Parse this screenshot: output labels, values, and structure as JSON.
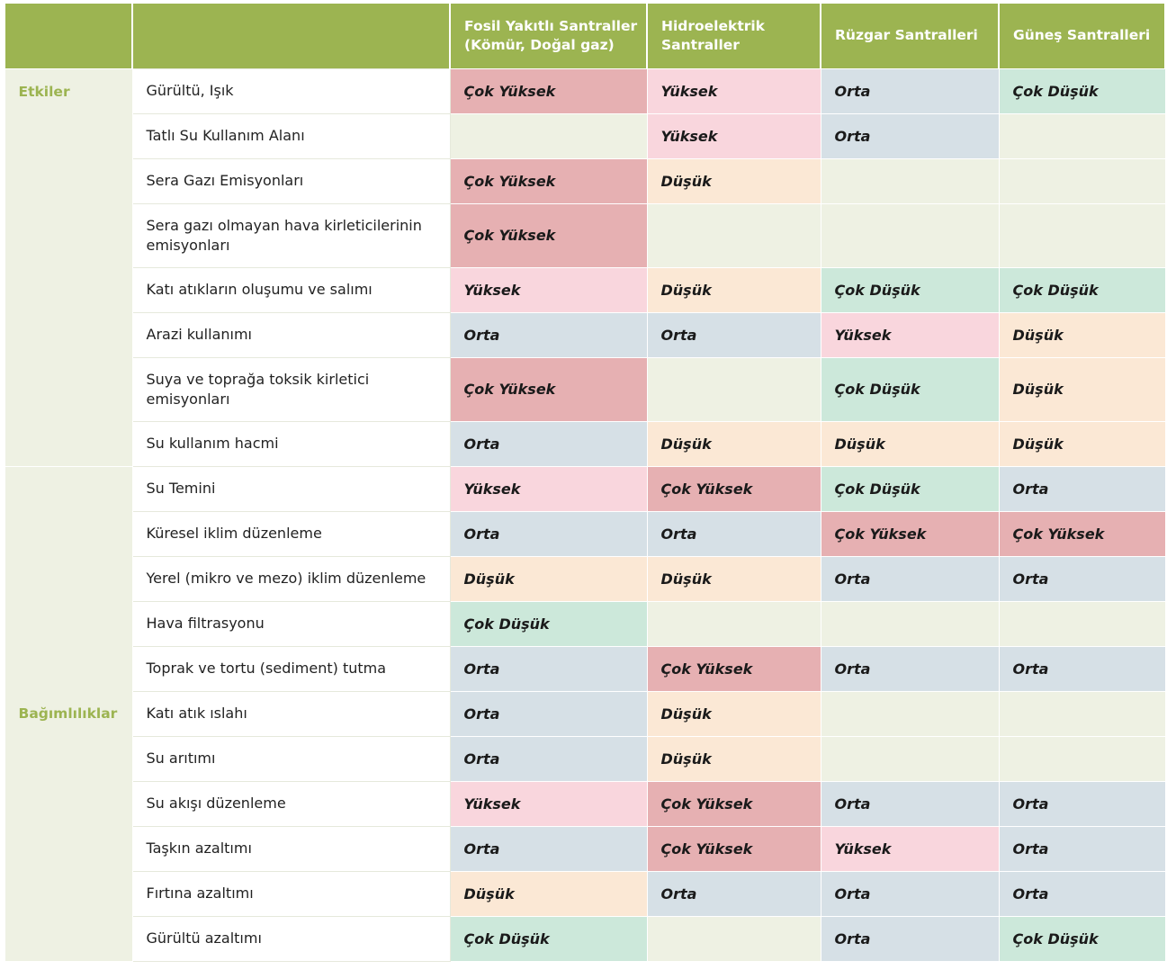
{
  "columns": [
    "",
    "",
    "Fosil Yakıtlı Santraller (Kömür, Doğal gaz)",
    "Hidroelektrik Santraller",
    "Rüzgar Santralleri",
    "Güneş Santralleri"
  ],
  "groups": [
    {
      "name": "Etkiler",
      "rows": [
        {
          "label": "Gürültü, Işık",
          "values": [
            "Çok Yüksek",
            "Yüksek",
            "Orta",
            "Çok Düşük"
          ]
        },
        {
          "label": "Tatlı Su Kullanım Alanı",
          "values": [
            "",
            "Yüksek",
            "Orta",
            ""
          ]
        },
        {
          "label": "Sera Gazı Emisyonları",
          "values": [
            "Çok Yüksek",
            "Düşük",
            "",
            ""
          ]
        },
        {
          "label": "Sera gazı olmayan hava kirleticilerinin emisyonları",
          "values": [
            "Çok Yüksek",
            "",
            "",
            ""
          ]
        },
        {
          "label": "Katı atıkların oluşumu ve salımı",
          "values": [
            "Yüksek",
            "Düşük",
            "Çok Düşük",
            "Çok Düşük"
          ]
        },
        {
          "label": "Arazi kullanımı",
          "values": [
            "Orta",
            "Orta",
            "Yüksek",
            "Düşük"
          ]
        },
        {
          "label": "Suya ve toprağa toksik kirletici emisyonları",
          "values": [
            "Çok Yüksek",
            "",
            "Çok Düşük",
            "Düşük"
          ]
        },
        {
          "label": "Su kullanım hacmi",
          "values": [
            "Orta",
            "Düşük",
            "Düşük",
            "Düşük"
          ]
        }
      ]
    },
    {
      "name": "Bağımlılıklar",
      "rows": [
        {
          "label": "Su Temini",
          "values": [
            "Yüksek",
            "Çok Yüksek",
            "Çok Düşük",
            "Orta"
          ]
        },
        {
          "label": "Küresel iklim düzenleme",
          "values": [
            "Orta",
            "Orta",
            "Çok Yüksek",
            "Çok Yüksek"
          ]
        },
        {
          "label": "Yerel (mikro ve mezo) iklim düzenleme",
          "values": [
            "Düşük",
            "Düşük",
            "Orta",
            "Orta"
          ]
        },
        {
          "label": "Hava filtrasyonu",
          "values": [
            "Çok Düşük",
            "",
            "",
            ""
          ]
        },
        {
          "label": "Toprak ve tortu (sediment) tutma",
          "values": [
            "Orta",
            "Çok Yüksek",
            "Orta",
            "Orta"
          ]
        },
        {
          "label": "Katı atık ıslahı",
          "values": [
            "Orta",
            "Düşük",
            "",
            ""
          ]
        },
        {
          "label": "Su arıtımı",
          "values": [
            "Orta",
            "Düşük",
            "",
            ""
          ]
        },
        {
          "label": "Su akışı düzenleme",
          "values": [
            "Yüksek",
            "Çok Yüksek",
            "Orta",
            "Orta"
          ]
        },
        {
          "label": "Taşkın azaltımı",
          "values": [
            "Orta",
            "Çok Yüksek",
            "Yüksek",
            "Orta"
          ]
        },
        {
          "label": "Fırtına azaltımı",
          "values": [
            "Düşük",
            "Orta",
            "Orta",
            "Orta"
          ]
        },
        {
          "label": "Gürültü azaltımı",
          "values": [
            "Çok Düşük",
            "",
            "Orta",
            "Çok Düşük"
          ]
        }
      ]
    }
  ],
  "level_colors": {
    "Çok Yüksek": "#e6b0b2",
    "Yüksek": "#f9d6dd",
    "Orta": "#d6e0e6",
    "Düşük": "#fbe8d5",
    "Çok Düşük": "#cce8da",
    "": "#eef1e3"
  },
  "header_color": "#9cb451"
}
